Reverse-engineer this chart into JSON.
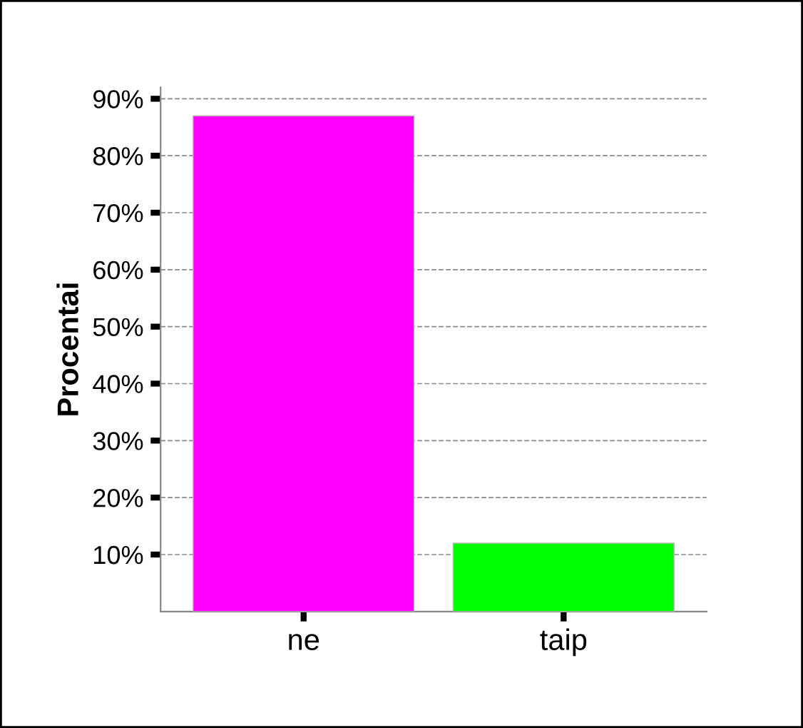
{
  "chart_data": {
    "type": "bar",
    "ylabel": "Procentai",
    "categories": [
      "ne",
      "taip"
    ],
    "values": [
      87,
      12
    ],
    "colors": [
      "#ff00ff",
      "#00ff00"
    ],
    "ylim": [
      0,
      92
    ],
    "yticks": [
      {
        "value": 10,
        "label": "10%"
      },
      {
        "value": 20,
        "label": "20%"
      },
      {
        "value": 30,
        "label": "30%"
      },
      {
        "value": 40,
        "label": "40%"
      },
      {
        "value": 50,
        "label": "50%"
      },
      {
        "value": 60,
        "label": "60%"
      },
      {
        "value": 70,
        "label": "70%"
      },
      {
        "value": 80,
        "label": "80%"
      },
      {
        "value": 90,
        "label": "90%"
      }
    ],
    "grid": "y"
  }
}
